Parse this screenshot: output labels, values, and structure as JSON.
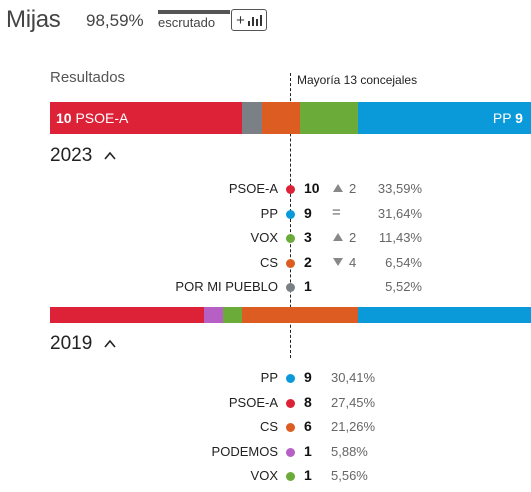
{
  "header": {
    "title": "Mijas",
    "scrutiny_pct": "98,59%",
    "scrutiny_label": "escrutado",
    "chart_button_plus": "+",
    "chart_button_icon": "bar-chart-icon"
  },
  "results_label": "Resultados",
  "majority_label": "Mayoría 13 concejales",
  "colors": {
    "psoe": "#dd2238",
    "pp": "#0a9ad9",
    "vox": "#6aab3a",
    "cs": "#dd5c22",
    "porMiPueblo": "#7b7f86",
    "podemos": "#b65fc4"
  },
  "bar_2023": {
    "left_label_seats": "10",
    "left_label_party": "PSOE-A",
    "right_label_party": "PP",
    "right_label_seats": "9",
    "segments": [
      {
        "party": "PSOE-A",
        "seats": 10,
        "color": "#dd2238"
      },
      {
        "party": "POR MI PUEBLO",
        "seats": 1,
        "color": "#7b7f86"
      },
      {
        "party": "CS",
        "seats": 2,
        "color": "#dd5c22"
      },
      {
        "party": "VOX",
        "seats": 3,
        "color": "#6aab3a"
      },
      {
        "party": "PP",
        "seats": 9,
        "color": "#0a9ad9"
      }
    ]
  },
  "year_2023": "2023",
  "results_2023": [
    {
      "party": "PSOE-A",
      "color": "#dd2238",
      "seats": "10",
      "trend": "up",
      "change": "2",
      "pct": "33,59%"
    },
    {
      "party": "PP",
      "color": "#0a9ad9",
      "seats": "9",
      "trend": "equal",
      "change": "=",
      "pct": "31,64%"
    },
    {
      "party": "VOX",
      "color": "#6aab3a",
      "seats": "3",
      "trend": "up",
      "change": "2",
      "pct": "11,43%"
    },
    {
      "party": "CS",
      "color": "#dd5c22",
      "seats": "2",
      "trend": "down",
      "change": "4",
      "pct": "6,54%"
    },
    {
      "party": "POR MI PUEBLO",
      "color": "#7b7f86",
      "seats": "1",
      "trend": "none",
      "change": "",
      "pct": "5,52%"
    }
  ],
  "bar_2019": {
    "segments": [
      {
        "party": "PSOE-A",
        "seats": 8,
        "color": "#dd2238"
      },
      {
        "party": "PODEMOS",
        "seats": 1,
        "color": "#b65fc4"
      },
      {
        "party": "VOX",
        "seats": 1,
        "color": "#6aab3a"
      },
      {
        "party": "CS",
        "seats": 6,
        "color": "#dd5c22"
      },
      {
        "party": "PP",
        "seats": 9,
        "color": "#0a9ad9"
      }
    ]
  },
  "year_2019": "2019",
  "results_2019": [
    {
      "party": "PP",
      "color": "#0a9ad9",
      "seats": "9",
      "pct": "30,41%"
    },
    {
      "party": "PSOE-A",
      "color": "#dd2238",
      "seats": "8",
      "pct": "27,45%"
    },
    {
      "party": "CS",
      "color": "#dd5c22",
      "seats": "6",
      "pct": "21,26%"
    },
    {
      "party": "PODEMOS",
      "color": "#b65fc4",
      "seats": "1",
      "pct": "5,88%"
    },
    {
      "party": "VOX",
      "color": "#6aab3a",
      "seats": "1",
      "pct": "5,56%"
    }
  ]
}
